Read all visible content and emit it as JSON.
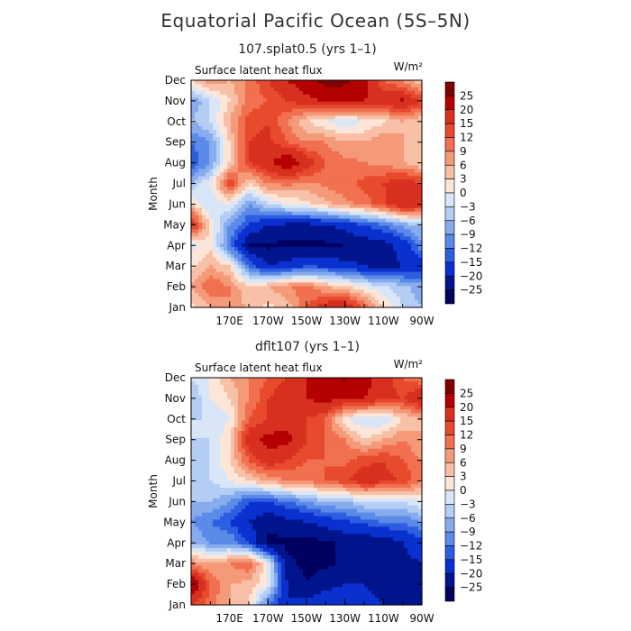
{
  "figure": {
    "title": "Equatorial Pacific Ocean (5S–5N)"
  },
  "chart_data": [
    {
      "type": "heatmap",
      "title": "107.splat0.5 (yrs 1–1)",
      "variable": "Surface latent heat flux",
      "units_label": "W/m²",
      "ylabel": "Month",
      "x_tick_labels": [
        "170E",
        "170W",
        "150W",
        "130W",
        "110W",
        "90W"
      ],
      "x_ticks": [
        170,
        190,
        210,
        230,
        250,
        270
      ],
      "xlim": [
        150,
        270
      ],
      "y_tick_labels": [
        "Jan",
        "Feb",
        "Mar",
        "Apr",
        "May",
        "Jun",
        "Jul",
        "Aug",
        "Sep",
        "Oct",
        "Nov",
        "Dec"
      ],
      "ylim": [
        1,
        12
      ],
      "grid_x": [
        150,
        160,
        170,
        180,
        190,
        200,
        210,
        220,
        230,
        240,
        250,
        260,
        270
      ],
      "grid_y": [
        "Jan",
        "Feb",
        "Mar",
        "Apr",
        "May",
        "Jun",
        "Jul",
        "Aug",
        "Sep",
        "Oct",
        "Nov",
        "Dec"
      ],
      "values": [
        [
          2,
          6,
          9,
          5,
          2,
          4,
          12,
          18,
          20,
          12,
          3,
          -3,
          -6
        ],
        [
          6,
          12,
          9,
          3,
          6,
          9,
          10,
          6,
          4,
          0,
          -2,
          -5,
          -8
        ],
        [
          2,
          6,
          3,
          -12,
          -20,
          -18,
          -15,
          -16,
          -18,
          -20,
          -22,
          -20,
          -18
        ],
        [
          -1,
          2,
          -12,
          -25,
          -26,
          -26,
          -27,
          -26,
          -25,
          -23,
          -22,
          -18,
          -10
        ],
        [
          19,
          2,
          -9,
          -15,
          -20,
          -21,
          -21,
          -20,
          -18,
          -15,
          -12,
          -8,
          -5
        ],
        [
          3,
          -3,
          0,
          -9,
          -3,
          0,
          2,
          5,
          8,
          10,
          14,
          20,
          18
        ],
        [
          -6,
          0,
          15,
          3,
          9,
          10,
          8,
          10,
          11,
          13,
          15,
          18,
          15
        ],
        [
          -15,
          -9,
          3,
          15,
          19,
          25,
          18,
          12,
          10,
          9,
          8,
          6,
          3
        ],
        [
          -12,
          -9,
          3,
          15,
          16,
          12,
          9,
          9,
          6,
          6,
          9,
          6,
          3
        ],
        [
          -6,
          -3,
          6,
          14,
          15,
          9,
          3,
          0,
          -3,
          0,
          2,
          6,
          3
        ],
        [
          -9,
          -3,
          3,
          10,
          12,
          15,
          18,
          21,
          22,
          20,
          18,
          21,
          15
        ],
        [
          3,
          9,
          6,
          10,
          15,
          20,
          24,
          27,
          26,
          22,
          12,
          8,
          3
        ]
      ]
    },
    {
      "type": "heatmap",
      "title": "dflt107 (yrs 1–1)",
      "variable": "Surface latent heat flux",
      "units_label": "W/m²",
      "ylabel": "Month",
      "x_tick_labels": [
        "170E",
        "170W",
        "150W",
        "130W",
        "110W",
        "90W"
      ],
      "x_ticks": [
        170,
        190,
        210,
        230,
        250,
        270
      ],
      "xlim": [
        150,
        270
      ],
      "y_tick_labels": [
        "Jan",
        "Feb",
        "Mar",
        "Apr",
        "May",
        "Jun",
        "Jul",
        "Aug",
        "Sep",
        "Oct",
        "Nov",
        "Dec"
      ],
      "ylim": [
        1,
        12
      ],
      "grid_x": [
        150,
        160,
        170,
        180,
        190,
        200,
        210,
        220,
        230,
        240,
        250,
        260,
        270
      ],
      "grid_y": [
        "Jan",
        "Feb",
        "Mar",
        "Apr",
        "May",
        "Jun",
        "Jul",
        "Aug",
        "Sep",
        "Oct",
        "Nov",
        "Dec"
      ],
      "values": [
        [
          15,
          10,
          6,
          3,
          -12,
          -20,
          -18,
          -15,
          -15,
          -18,
          -20,
          -22,
          -20
        ],
        [
          26,
          12,
          6,
          5,
          0,
          -20,
          -25,
          -22,
          -20,
          -20,
          -22,
          -22,
          -20
        ],
        [
          9,
          6,
          9,
          12,
          0,
          -24,
          -26,
          -26,
          -24,
          -24,
          -24,
          -22,
          -20
        ],
        [
          -6,
          -9,
          -9,
          -15,
          -26,
          -26,
          -27,
          -26,
          -24,
          -24,
          -23,
          -20,
          -16
        ],
        [
          -9,
          -12,
          -15,
          -20,
          -24,
          -22,
          -20,
          -18,
          -16,
          -14,
          -12,
          -12,
          -9
        ],
        [
          -6,
          -6,
          -9,
          -15,
          -15,
          -12,
          -9,
          -6,
          -6,
          -3,
          -3,
          -3,
          0
        ],
        [
          -3,
          -3,
          0,
          3,
          6,
          9,
          9,
          12,
          14,
          18,
          16,
          15,
          9
        ],
        [
          -6,
          -3,
          3,
          12,
          18,
          15,
          12,
          12,
          11,
          14,
          15,
          12,
          9
        ],
        [
          -3,
          -3,
          3,
          18,
          22,
          22,
          15,
          12,
          9,
          3,
          6,
          9,
          6
        ],
        [
          -3,
          -3,
          0,
          12,
          15,
          18,
          15,
          12,
          0,
          -3,
          -3,
          3,
          6
        ],
        [
          -6,
          0,
          3,
          9,
          15,
          18,
          20,
          22,
          20,
          20,
          16,
          15,
          20
        ],
        [
          -3,
          0,
          6,
          9,
          12,
          15,
          20,
          22,
          26,
          22,
          18,
          12,
          9
        ]
      ]
    }
  ],
  "colorbar": {
    "labels": [
      "25",
      "20",
      "15",
      "12",
      "9",
      "6",
      "3",
      "0",
      "−3",
      "−6",
      "−9",
      "−12",
      "−15",
      "−20",
      "−25"
    ],
    "thresholds": [
      25,
      20,
      15,
      12,
      9,
      6,
      3,
      0,
      -3,
      -6,
      -9,
      -12,
      -15,
      -20,
      -25
    ],
    "colors": [
      "#7f0000",
      "#b40000",
      "#d7301f",
      "#e84a2e",
      "#f07050",
      "#f49a78",
      "#f8c0a6",
      "#fde6d8",
      "#d8e6f8",
      "#b4cdf4",
      "#86acee",
      "#5b8ae8",
      "#2e5ee0",
      "#0a30d0",
      "#00158c",
      "#000060"
    ]
  }
}
